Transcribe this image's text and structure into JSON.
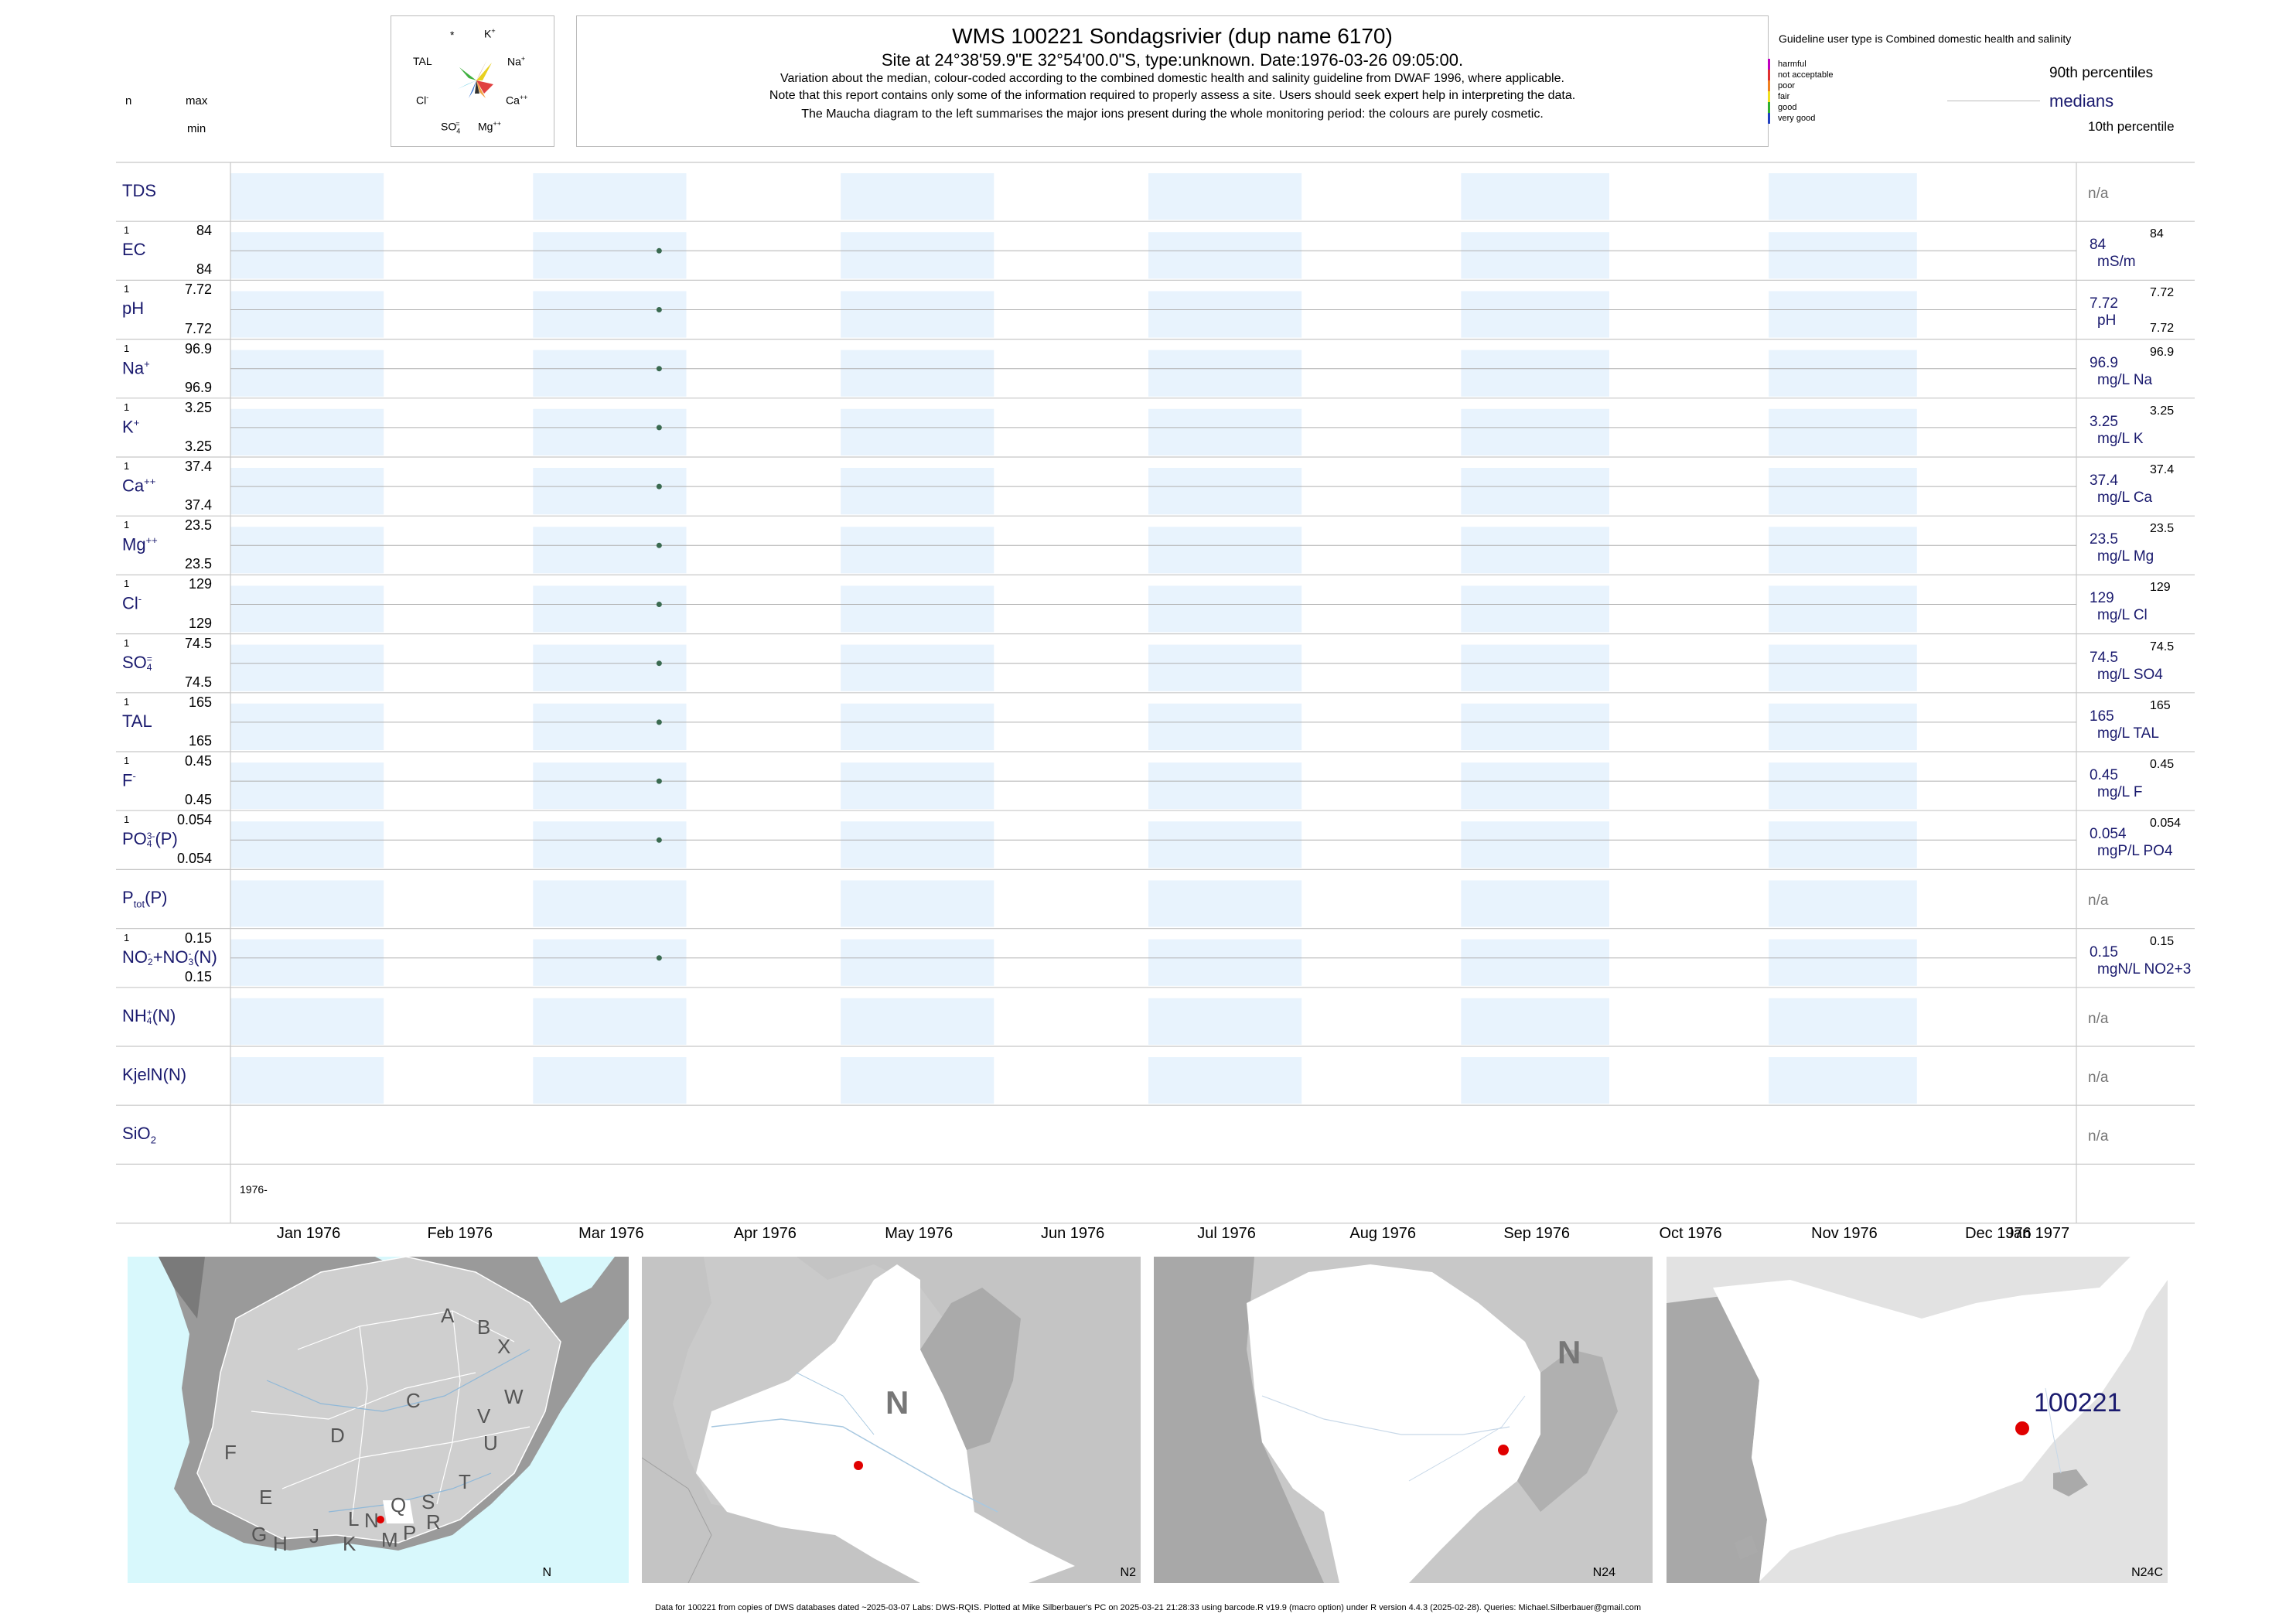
{
  "header": {
    "n_label": "n",
    "max_label": "max",
    "min_label": "min",
    "title": "WMS 100221  Sondagsrivier (dup name 6170)",
    "site_line": "Site at 24°38'59.9\"E 32°54'00.0\"S, type:unknown. Date:1976-03-26 09:05:00.",
    "note1": "Variation about the median,  colour-coded according to the combined domestic health and salinity guideline from DWAF 1996, where applicable.",
    "note2": "Note that this report contains only some of the information required to properly assess a site. Users should seek expert help in interpreting the data.",
    "note3": "The Maucha diagram to the left summarises the major ions present during the whole monitoring period: the colours are purely cosmetic."
  },
  "maucha": {
    "labels": {
      "star": "*",
      "k": "K",
      "k_sup": "+",
      "tal": "TAL",
      "na": "Na",
      "na_sup": "+",
      "cl": "Cl",
      "cl_sup": "-",
      "ca": "Ca",
      "ca_sup": "++",
      "so4": "SO",
      "so4_sub": "4",
      "so4_sup": "=",
      "mg": "Mg",
      "mg_sup": "++"
    },
    "colors": {
      "na": "#e8d020",
      "k": "#a06030",
      "ca": "#e04040",
      "mg": "#f0a040",
      "so4": "#3070d0",
      "cl": "#40c0e0",
      "tal": "#40b040",
      "other": "#303030"
    }
  },
  "legend": {
    "heading": "Guideline user type is Combined domestic health and salinity",
    "classes": [
      {
        "label": "harmful",
        "color": "#c000c0"
      },
      {
        "label": "not acceptable",
        "color": "#e03030"
      },
      {
        "label": "poor",
        "color": "#f08020"
      },
      {
        "label": "fair",
        "color": "#f0e020"
      },
      {
        "label": "good",
        "color": "#30b030"
      },
      {
        "label": "very good",
        "color": "#2040c0"
      }
    ],
    "p90": "90th percentiles",
    "medians": "medians",
    "p10": "10th percentile"
  },
  "chart_data": {
    "type": "scatter",
    "x_range": [
      "1976-01-01",
      "1977-01-01"
    ],
    "x_ticks": [
      "Jan 1976",
      "Feb 1976",
      "Mar 1976",
      "Apr 1976",
      "May 1976",
      "Jun 1976",
      "Jul 1976",
      "Aug 1976",
      "Sep 1976",
      "Oct 1976",
      "Nov 1976",
      "Dec 1976",
      "Jan 1977"
    ],
    "year_label": "1976-",
    "sample_date": "1976-03-26",
    "point_color": "#3a6a50",
    "band_color": "#e8f3fd",
    "variables": [
      {
        "key": "tds",
        "label": "TDS",
        "n": null,
        "max": null,
        "min": null,
        "value": null,
        "display": "n/a",
        "unit": "",
        "p90": ""
      },
      {
        "key": "ec",
        "label": "EC",
        "n": "1",
        "max": "84",
        "min": "84",
        "value": 84,
        "display": "84",
        "unit": "mS/m",
        "p90": "84",
        "p10": ""
      },
      {
        "key": "ph",
        "label": "pH",
        "n": "1",
        "max": "7.72",
        "min": "7.72",
        "value": 7.72,
        "display": "7.72",
        "unit": "pH",
        "p90": "7.72",
        "p10": "7.72"
      },
      {
        "key": "na",
        "label": "Na",
        "sup": "+",
        "n": "1",
        "max": "96.9",
        "min": "96.9",
        "value": 96.9,
        "display": "96.9",
        "unit": "mg/L Na",
        "p90": "96.9",
        "p10": ""
      },
      {
        "key": "k",
        "label": "K",
        "sup": "+",
        "n": "1",
        "max": "3.25",
        "min": "3.25",
        "value": 3.25,
        "display": "3.25",
        "unit": "mg/L K",
        "p90": "3.25",
        "p10": ""
      },
      {
        "key": "ca",
        "label": "Ca",
        "sup": "++",
        "n": "1",
        "max": "37.4",
        "min": "37.4",
        "value": 37.4,
        "display": "37.4",
        "unit": "mg/L Ca",
        "p90": "37.4",
        "p10": ""
      },
      {
        "key": "mg",
        "label": "Mg",
        "sup": "++",
        "n": "1",
        "max": "23.5",
        "min": "23.5",
        "value": 23.5,
        "display": "23.5",
        "unit": "mg/L Mg",
        "p90": "23.5",
        "p10": ""
      },
      {
        "key": "cl",
        "label": "Cl",
        "sup": "-",
        "n": "1",
        "max": "129",
        "min": "129",
        "value": 129,
        "display": "129",
        "unit": "mg/L Cl",
        "p90": "129",
        "p10": ""
      },
      {
        "key": "so4",
        "label": "SO",
        "sub": "4",
        "sup": "=",
        "n": "1",
        "max": "74.5",
        "min": "74.5",
        "value": 74.5,
        "display": "74.5",
        "unit": "mg/L SO4",
        "p90": "74.5",
        "p10": ""
      },
      {
        "key": "tal",
        "label": "TAL",
        "n": "1",
        "max": "165",
        "min": "165",
        "value": 165,
        "display": "165",
        "unit": "mg/L TAL",
        "p90": "165",
        "p10": ""
      },
      {
        "key": "f",
        "label": "F",
        "sup": "-",
        "n": "1",
        "max": "0.45",
        "min": "0.45",
        "value": 0.45,
        "display": "0.45",
        "unit": "mg/L F",
        "p90": "0.45",
        "p10": ""
      },
      {
        "key": "po4",
        "label": "PO",
        "sub": "4",
        "sup": "3-",
        "tail": "(P)",
        "n": "1",
        "max": "0.054",
        "min": "0.054",
        "value": 0.054,
        "display": "0.054",
        "unit": "mgP/L PO4",
        "p90": "0.054",
        "p10": ""
      },
      {
        "key": "ptot",
        "label": "P",
        "sub": "tot",
        "tail": "(P)",
        "n": null,
        "max": null,
        "min": null,
        "value": null,
        "display": "n/a",
        "unit": "",
        "p90": ""
      },
      {
        "key": "nox",
        "label": "NO",
        "sub": "2",
        "sup": "-",
        "tail": "+NO",
        "sub2": "3",
        "sup2": "-",
        "tail2": "(N)",
        "n": "1",
        "max": "0.15",
        "min": "0.15",
        "value": 0.15,
        "display": "0.15",
        "unit": "mgN/L NO2+3",
        "p90": "0.15",
        "p10": ""
      },
      {
        "key": "nh4",
        "label": "NH",
        "sub": "4",
        "sup": "+",
        "tail": "(N)",
        "n": null,
        "max": null,
        "min": null,
        "value": null,
        "display": "n/a",
        "unit": "",
        "p90": ""
      },
      {
        "key": "kjel",
        "label": "KjelN(N)",
        "n": null,
        "max": null,
        "min": null,
        "value": null,
        "display": "n/a",
        "unit": "",
        "p90": ""
      },
      {
        "key": "sio2",
        "label": "SiO",
        "sub": "2",
        "n": null,
        "max": null,
        "min": null,
        "value": null,
        "display": "n/a",
        "unit": "",
        "p90": "",
        "noband": true
      }
    ]
  },
  "maps": {
    "map1": {
      "corner": "N",
      "regions": [
        "A",
        "B",
        "X",
        "W",
        "C",
        "V",
        "D",
        "U",
        "F",
        "T",
        "E",
        "S",
        "Q",
        "R",
        "L",
        "N",
        "M",
        "P",
        "G",
        "H",
        "J",
        "K"
      ]
    },
    "map2": {
      "corner": "N2",
      "big": "N"
    },
    "map3": {
      "corner": "N24",
      "big": "N"
    },
    "map4": {
      "corner": "N24C",
      "site": "100221"
    }
  },
  "footer": "Data for 100221 from copies of DWS databases dated ~2025-03-07 Labs: DWS-RQIS. Plotted at Mike Silberbauer's PC on 2025-03-21 21:28:33 using barcode.R v19.9 (macro option) under R version 4.4.3 (2025-02-28). Queries: Michael.Silberbauer@gmail.com"
}
